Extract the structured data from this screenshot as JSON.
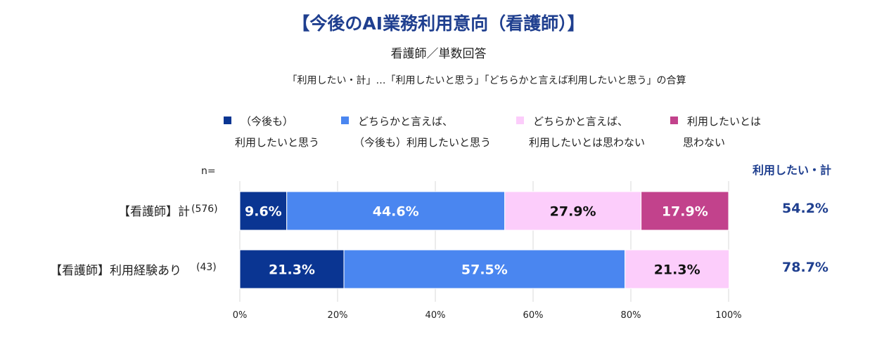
{
  "title": "【今後のAI業務利用意向（看護師）】",
  "subtitle": "看護師／単数回答",
  "note": "「利用したい・計」…「利用したいと思う」「どちらかと言えば利用したいと思う」の合算",
  "n_label": "n=",
  "total_header": "利用したい・計",
  "legend": [
    {
      "line1": "（今後も）",
      "line2": "利用したいと思う",
      "color": "#0a3592"
    },
    {
      "line1": "どちらかと言えば、",
      "line2": "（今後も）利用したいと思う",
      "color": "#4a86f0"
    },
    {
      "line1": "どちらかと言えば、",
      "line2": "利用したいとは思わない",
      "color": "#fccdfb"
    },
    {
      "line1": "利用したいとは",
      "line2": "思わない",
      "color": "#c2428c"
    }
  ],
  "rows": [
    {
      "label": "【看護師】計",
      "n": "(576)",
      "total": "54.2%"
    },
    {
      "label": "【看護師】利用経験あり",
      "n": "(43)",
      "total": "78.7%"
    }
  ],
  "chart_data": {
    "type": "bar",
    "orientation": "horizontal",
    "stacked": true,
    "title": "【今後のAI業務利用意向（看護師）】",
    "categories": [
      "【看護師】計",
      "【看護師】利用経験あり"
    ],
    "series": [
      {
        "name": "（今後も）利用したいと思う",
        "values": [
          9.6,
          21.3
        ],
        "color": "#0a3592",
        "label_color": "#ffffff"
      },
      {
        "name": "どちらかと言えば、（今後も）利用したいと思う",
        "values": [
          44.6,
          57.5
        ],
        "color": "#4a86f0",
        "label_color": "#ffffff"
      },
      {
        "name": "どちらかと言えば、利用したいとは思わない",
        "values": [
          27.9,
          21.3
        ],
        "color": "#fccdfb",
        "label_color": "#111111"
      },
      {
        "name": "利用したいとは思わない",
        "values": [
          17.9,
          0
        ],
        "color": "#c2428c",
        "label_color": "#ffffff"
      }
    ],
    "xlim": [
      0,
      100
    ],
    "xticks": [
      "0%",
      "20%",
      "40%",
      "60%",
      "80%",
      "100%"
    ],
    "grid": true,
    "legend_position": "top"
  }
}
